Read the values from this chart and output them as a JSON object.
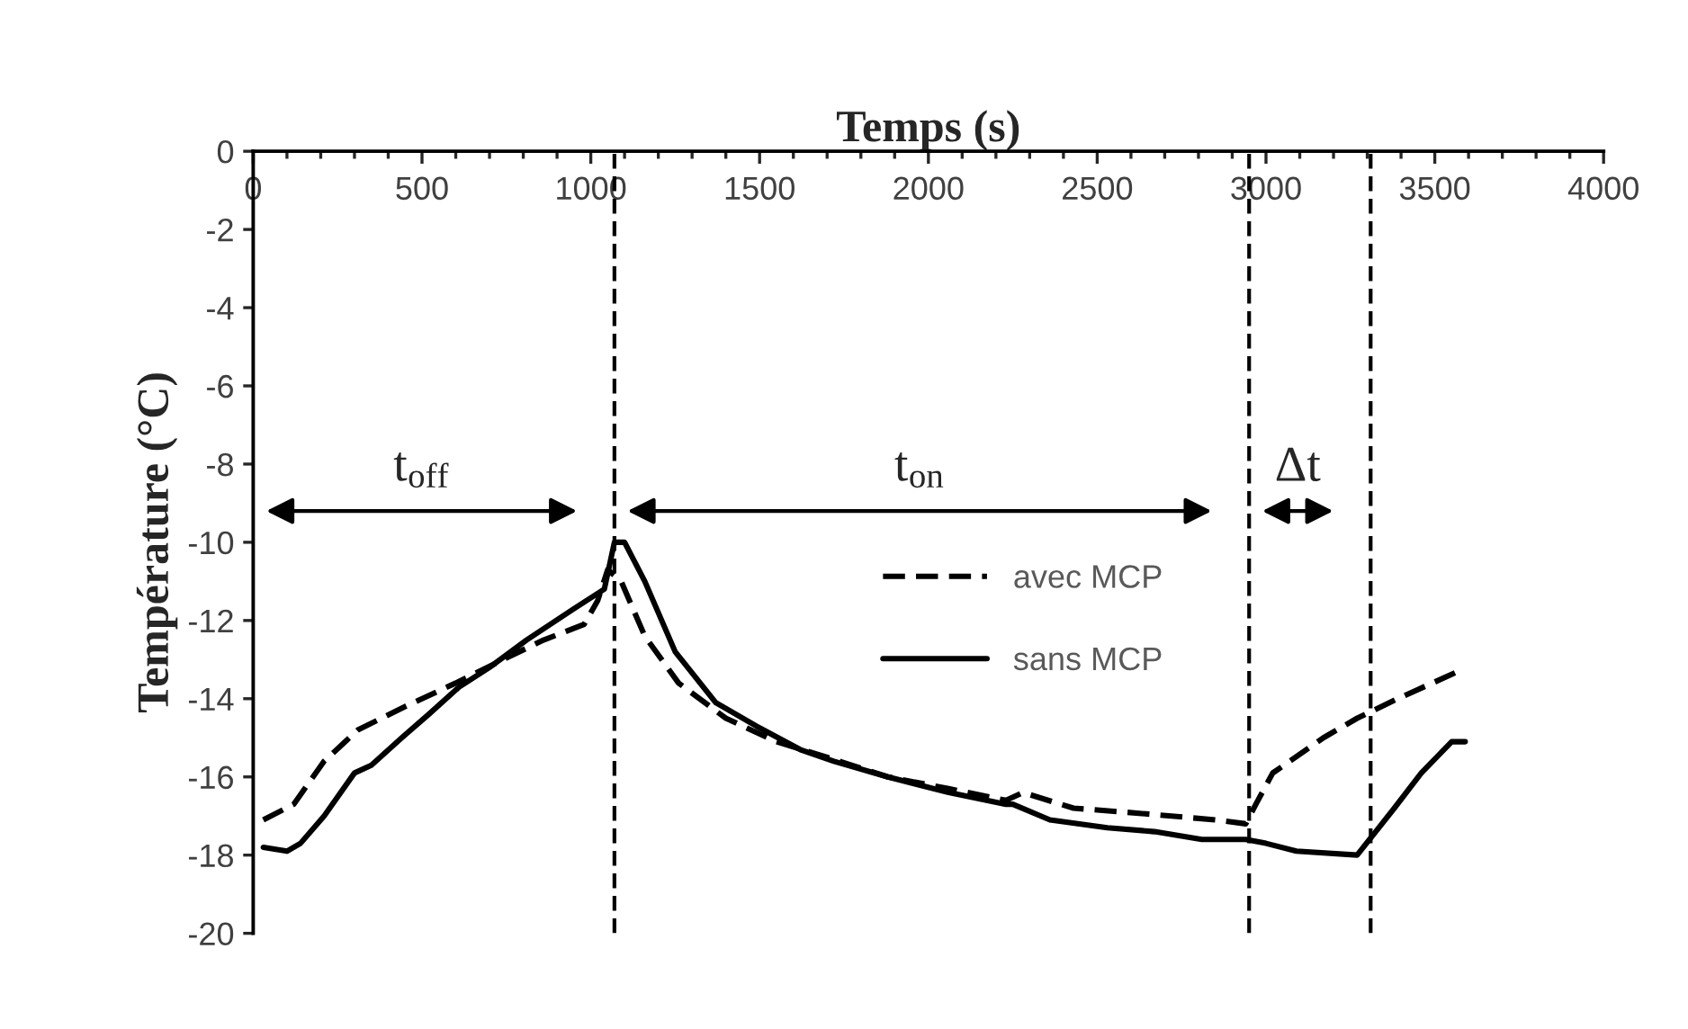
{
  "chart_data": {
    "type": "line",
    "xlabel": "Temps (s)",
    "ylabel": "Température (°C)",
    "xlim": [
      0,
      4000
    ],
    "xticks": [
      0,
      500,
      1000,
      1500,
      2000,
      2500,
      3000,
      3500,
      4000
    ],
    "ylim": [
      -20,
      0
    ],
    "yticks": [
      0,
      -2,
      -4,
      -6,
      -8,
      -10,
      -12,
      -14,
      -16,
      -18,
      -20
    ],
    "grid": false,
    "legend": "center",
    "marker": "none",
    "series": [
      {
        "name": "avec MCP",
        "color": "#000000",
        "line_style": "dashed",
        "x": [
          30,
          120,
          210,
          310,
          450,
          600,
          740,
          860,
          980,
          1020,
          1050,
          1090,
          1160,
          1260,
          1400,
          1550,
          1700,
          1880,
          2060,
          2230,
          2280,
          2430,
          2580,
          2720,
          2850,
          2940,
          2970,
          3020,
          3170,
          3270,
          3390,
          3570
        ],
        "values": [
          -17.1,
          -16.7,
          -15.6,
          -14.8,
          -14.2,
          -13.6,
          -13.0,
          -12.5,
          -12.1,
          -11.5,
          -10.7,
          -11.0,
          -12.4,
          -13.6,
          -14.5,
          -15.1,
          -15.5,
          -16.0,
          -16.3,
          -16.6,
          -16.4,
          -16.8,
          -16.9,
          -17.0,
          -17.1,
          -17.2,
          -16.7,
          -15.9,
          -15.0,
          -14.5,
          -14.0,
          -13.3
        ]
      },
      {
        "name": "sans MCP",
        "color": "#000000",
        "line_style": "solid",
        "x": [
          30,
          100,
          140,
          210,
          300,
          350,
          440,
          520,
          610,
          700,
          810,
          950,
          1040,
          1070,
          1100,
          1160,
          1250,
          1370,
          1490,
          1620,
          1720,
          1880,
          2060,
          2230,
          2250,
          2360,
          2530,
          2670,
          2810,
          2940,
          3000,
          3090,
          3270,
          3380,
          3460,
          3550,
          3590
        ],
        "values": [
          -17.8,
          -17.9,
          -17.7,
          -17.0,
          -15.9,
          -15.7,
          -15.0,
          -14.4,
          -13.7,
          -13.2,
          -12.5,
          -11.7,
          -11.2,
          -10.0,
          -10.0,
          -11.0,
          -12.8,
          -14.1,
          -14.7,
          -15.3,
          -15.6,
          -16.0,
          -16.4,
          -16.7,
          -16.7,
          -17.1,
          -17.3,
          -17.4,
          -17.6,
          -17.6,
          -17.7,
          -17.9,
          -18.0,
          -16.8,
          -15.9,
          -15.1,
          -15.1
        ]
      }
    ],
    "ref_lines": [
      {
        "axis": "x",
        "value": 1070,
        "color": "#000000",
        "line_style": "dashed"
      },
      {
        "axis": "x",
        "value": 2950,
        "color": "#000000",
        "line_style": "dashed"
      },
      {
        "axis": "x",
        "value": 3310,
        "color": "#000000",
        "line_style": "dashed"
      }
    ],
    "annotations": [
      "t$_{off}$",
      "t$_{on}$",
      "Δt"
    ]
  }
}
